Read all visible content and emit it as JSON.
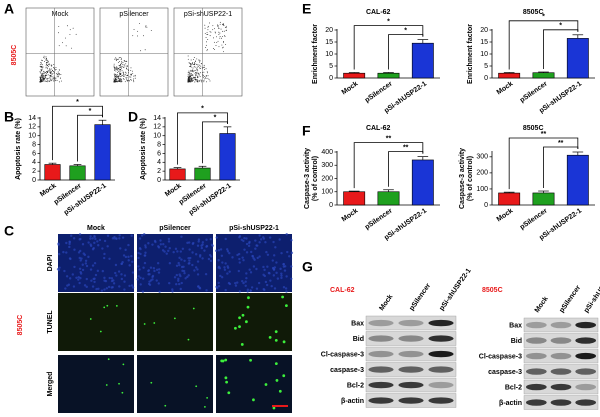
{
  "panel_labels": [
    "A",
    "B",
    "C",
    "D",
    "E",
    "F",
    "G"
  ],
  "flow": {
    "cell_line": "8505C",
    "columns": [
      "Mock",
      "pSilencer",
      "pSi-shUSP22-1"
    ]
  },
  "tunel": {
    "cell_line": "8505C",
    "columns": [
      "Mock",
      "pSilencer",
      "pSi-shUSP22-1"
    ],
    "rows": [
      "DAPI",
      "TUNEL",
      "Merged"
    ]
  },
  "western": {
    "blots": [
      {
        "cell_line": "CAL-62",
        "lanes": [
          "Mock",
          "pSilencer",
          "pSi-shUSP22-1"
        ],
        "proteins": [
          "Bax",
          "Bid",
          "Cl-caspase-3",
          "caspase-3",
          "Bcl-2",
          "β-actin"
        ]
      },
      {
        "cell_line": "8505C",
        "lanes": [
          "Mock",
          "pSilencer",
          "pSi-shUSP22-1"
        ],
        "proteins": [
          "Bax",
          "Bid",
          "Cl-caspase-3",
          "caspase-3",
          "Bcl-2",
          "β-actin"
        ]
      }
    ]
  },
  "chart_data": [
    {
      "type": "bar",
      "y_label": [
        "Apoptosis rate (%)"
      ],
      "categories": [
        "Mock",
        "pSilencer",
        "pSi-shUSP22-1"
      ],
      "values": [
        3.5,
        3.2,
        12.5
      ],
      "errors": [
        0.3,
        0.3,
        1.0
      ],
      "colors": [
        "#e8191a",
        "#1fa01f",
        "#1a35d6"
      ],
      "ylim": [
        0,
        14
      ],
      "yticks": [
        0,
        2,
        4,
        6,
        8,
        10,
        12,
        14
      ],
      "annotations": [
        "*",
        "*"
      ]
    },
    {
      "type": "bar",
      "y_label": [
        "Apoptosis rate (%)"
      ],
      "categories": [
        "Mock",
        "pSilencer",
        "pSi-shUSP22-1"
      ],
      "values": [
        2.5,
        2.7,
        10.5
      ],
      "errors": [
        0.3,
        0.4,
        1.5
      ],
      "colors": [
        "#e8191a",
        "#1fa01f",
        "#1a35d6"
      ],
      "ylim": [
        0,
        14
      ],
      "yticks": [
        0,
        2,
        4,
        6,
        8,
        10,
        12,
        14
      ],
      "annotations": [
        "*",
        "*"
      ]
    },
    {
      "type": "bar",
      "title": "CAL-62",
      "title_color": "#e8191a",
      "y_label": [
        "Enrichment factor"
      ],
      "categories": [
        "Mock",
        "pSilencer",
        "pSi-shUSP22-1"
      ],
      "values": [
        2,
        2,
        14.5
      ],
      "errors": [
        0.3,
        0.3,
        1.5
      ],
      "colors": [
        "#e8191a",
        "#1fa01f",
        "#1a35d6"
      ],
      "ylim": [
        0,
        20
      ],
      "yticks": [
        0,
        5,
        10,
        15,
        20
      ],
      "annotations": [
        "*",
        "*"
      ]
    },
    {
      "type": "bar",
      "title": "8505C",
      "title_color": "#e8191a",
      "y_label": [
        "Enrichment factor"
      ],
      "categories": [
        "Mock",
        "pSilencer",
        "pSi-shUSP22-1"
      ],
      "values": [
        2,
        2.2,
        16.5
      ],
      "errors": [
        0.3,
        0.3,
        1.5
      ],
      "colors": [
        "#e8191a",
        "#1fa01f",
        "#1a35d6"
      ],
      "ylim": [
        0,
        20
      ],
      "yticks": [
        0,
        5,
        10,
        15,
        20
      ],
      "annotations": [
        "*",
        "*"
      ]
    },
    {
      "type": "bar",
      "title": "CAL-62",
      "title_color": "#e8191a",
      "y_label": [
        "Caspase-3 activity",
        "(% of control)"
      ],
      "categories": [
        "Mock",
        "pSilencer",
        "pSi-shUSP22-1"
      ],
      "values": [
        100,
        100,
        340
      ],
      "errors": [
        5,
        15,
        25
      ],
      "colors": [
        "#e8191a",
        "#1fa01f",
        "#1a35d6"
      ],
      "ylim": [
        0,
        400
      ],
      "yticks": [
        0,
        100,
        200,
        300,
        400
      ],
      "annotations": [
        "**",
        "**"
      ]
    },
    {
      "type": "bar",
      "title": "8505C",
      "title_color": "#e8191a",
      "y_label": [
        "Caspase-3 activity",
        "(% of control)"
      ],
      "categories": [
        "Mock",
        "pSilencer",
        "pSi-shUSP22-1"
      ],
      "values": [
        75,
        75,
        310
      ],
      "errors": [
        5,
        12,
        20
      ],
      "colors": [
        "#e8191a",
        "#1fa01f",
        "#1a35d6"
      ],
      "ylim": [
        0,
        330
      ],
      "yticks": [
        0,
        100,
        200,
        300
      ],
      "annotations": [
        "**",
        "**"
      ]
    }
  ]
}
